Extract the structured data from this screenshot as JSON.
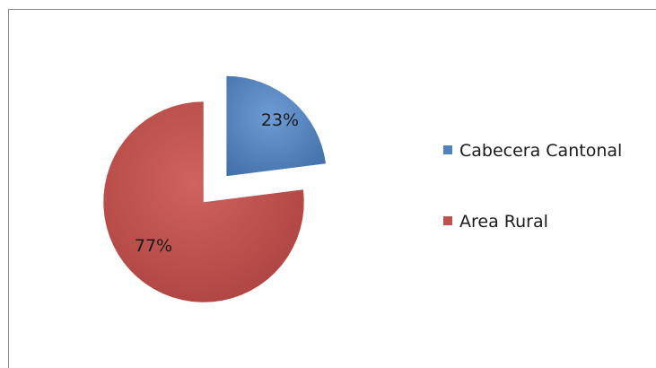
{
  "chart_data": {
    "type": "pie",
    "title": "",
    "legend_position": "right",
    "slices": [
      {
        "label": "Cabecera Cantonal",
        "value": 23,
        "display": "23%",
        "color": "#4f81bd",
        "exploded": true
      },
      {
        "label": "Area Rural",
        "value": 77,
        "display": "77%",
        "color": "#c0504d",
        "exploded": false
      }
    ]
  }
}
